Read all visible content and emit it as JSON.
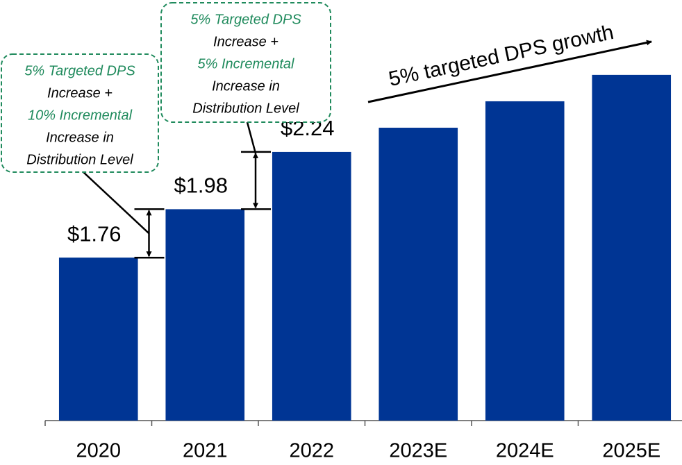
{
  "chart_data": {
    "type": "bar",
    "categories": [
      "2020",
      "2021",
      "2022",
      "2023E",
      "2024E",
      "2025E"
    ],
    "values": [
      1.76,
      1.98,
      2.24,
      2.35,
      2.47,
      2.59
    ],
    "value_labels": [
      "$1.76",
      "$1.98",
      "$2.24",
      null,
      null,
      null
    ],
    "color": "#003594",
    "ylim": [
      1.02,
      2.93
    ],
    "grid": false,
    "annotations": [
      {
        "lines": [
          {
            "text": "5% Targeted DPS",
            "color": "#1f8a5c"
          },
          {
            "text": "Increase +",
            "color": "#000000"
          },
          {
            "text": "10% Incremental",
            "color": "#1f8a5c"
          },
          {
            "text": "Increase in",
            "color": "#000000"
          },
          {
            "text": "Distribution Level",
            "color": "#000000"
          }
        ]
      },
      {
        "lines": [
          {
            "text": "5% Targeted DPS",
            "color": "#1f8a5c"
          },
          {
            "text": "Increase +",
            "color": "#000000"
          },
          {
            "text": "5% Incremental",
            "color": "#1f8a5c"
          },
          {
            "text": "Increase in",
            "color": "#000000"
          },
          {
            "text": "Distribution Level",
            "color": "#000000"
          }
        ]
      }
    ],
    "growth_label": "5% targeted DPS growth"
  }
}
